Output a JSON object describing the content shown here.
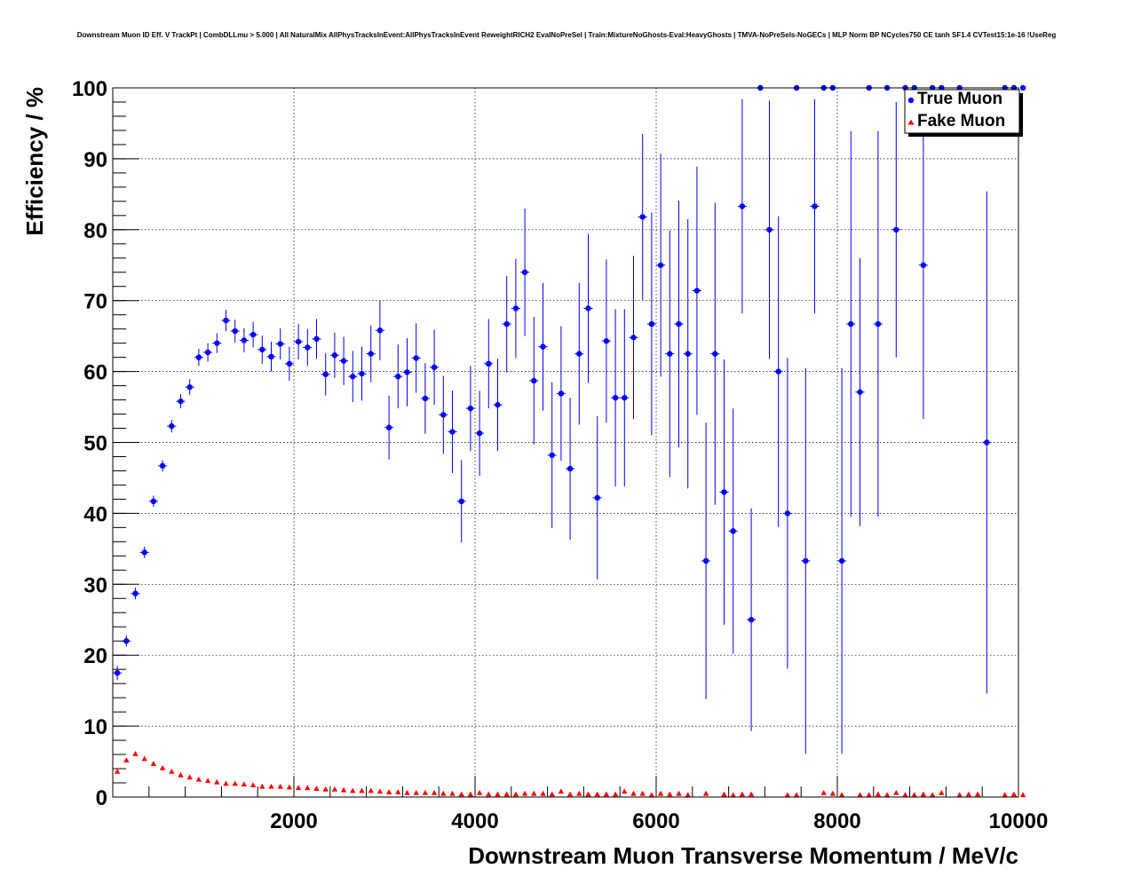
{
  "chart_data": {
    "type": "scatter",
    "title": "Downstream Muon ID Eff. V TrackPt | CombDLLmu > 5.000 | All NaturalMix AllPhysTracksInEvent:AllPhysTracksInEvent ReweightRICH2 EvalNoPreSel | Train:MixtureNoGhosts-Eval:HeavyGhosts | TMVA-NoPreSels-NoGECs | MLP Norm BP NCycles750 CE tanh SF1.4 CVTest15:1e-16 !UseReg",
    "xlabel": "Downstream Muon Transverse Momentum / MeV/c",
    "ylabel": "Efficiency / %",
    "xlim": [
      0,
      10000
    ],
    "ylim": [
      0,
      100
    ],
    "x_ticks": [
      "2000",
      "4000",
      "6000",
      "8000",
      "10000"
    ],
    "y_ticks": [
      "0",
      "10",
      "20",
      "30",
      "40",
      "50",
      "60",
      "70",
      "80",
      "90",
      "100"
    ],
    "grid": true,
    "legend_position": "top-right",
    "bin_width": 100,
    "series": [
      {
        "name": "True Muon",
        "color": "#0000ff",
        "marker": "circle",
        "x": [
          50,
          150,
          250,
          350,
          450,
          550,
          650,
          750,
          850,
          950,
          1050,
          1150,
          1250,
          1350,
          1450,
          1550,
          1650,
          1750,
          1850,
          1950,
          2050,
          2150,
          2250,
          2350,
          2450,
          2550,
          2650,
          2750,
          2850,
          2950,
          3050,
          3150,
          3250,
          3350,
          3450,
          3550,
          3650,
          3750,
          3850,
          3950,
          4050,
          4150,
          4250,
          4350,
          4450,
          4550,
          4650,
          4750,
          4850,
          4950,
          5050,
          5150,
          5250,
          5350,
          5450,
          5550,
          5650,
          5750,
          5850,
          5950,
          6050,
          6150,
          6250,
          6350,
          6450,
          6550,
          6650,
          6750,
          6850,
          6950,
          7050,
          7150,
          7250,
          7350,
          7450,
          7550,
          7650,
          7750,
          7850,
          7950,
          8050,
          8150,
          8250,
          8350,
          8450,
          8550,
          8650,
          8750,
          8850,
          8950,
          9050,
          9150,
          9350,
          9650,
          9850,
          9950,
          10050
        ],
        "y": [
          17.5,
          22,
          28.7,
          34.5,
          41.7,
          46.7,
          52.3,
          55.8,
          57.8,
          62,
          62.7,
          64,
          67.2,
          65.7,
          64.4,
          65.2,
          63.1,
          62.1,
          63.9,
          61.1,
          64.2,
          63.4,
          64.6,
          59.6,
          62.3,
          61.5,
          59.3,
          59.7,
          62.5,
          65.8,
          52.1,
          59.3,
          59.9,
          61.9,
          56.2,
          60.6,
          53.9,
          51.5,
          41.7,
          54.8,
          51.3,
          61.1,
          55.3,
          66.7,
          68.9,
          74,
          58.7,
          63.5,
          48.2,
          56.9,
          46.3,
          62.5,
          68.9,
          42.2,
          64.3,
          56.3,
          56.3,
          64.8,
          81.8,
          66.7,
          75,
          62.5,
          66.7,
          62.5,
          71.4,
          33.3,
          62.5,
          43,
          37.5,
          83.3,
          25,
          100,
          80,
          60,
          40,
          100,
          33.3,
          83.3,
          100,
          100,
          33.3,
          66.7,
          57.1,
          100,
          66.7,
          100,
          80,
          100,
          100,
          75,
          100,
          100,
          100,
          50,
          100,
          100,
          100
        ],
        "err": [
          1,
          0.8,
          0.8,
          0.8,
          0.8,
          0.8,
          0.9,
          1,
          1.1,
          1.2,
          1.3,
          1.4,
          1.5,
          1.6,
          1.7,
          1.8,
          2,
          2.1,
          2.2,
          2.4,
          2.5,
          2.6,
          2.8,
          3,
          3.2,
          3.4,
          3.6,
          3.8,
          4,
          4.2,
          4.5,
          4.5,
          4.8,
          4.9,
          5,
          5.3,
          5.5,
          5.8,
          5.8,
          6,
          6,
          6.3,
          6.5,
          6.8,
          7,
          9,
          9,
          9,
          10.3,
          9.5,
          10,
          10,
          10.5,
          11.5,
          11.5,
          12.5,
          12.5,
          11.5,
          11.7,
          15.7,
          15.7,
          17.4,
          17.4,
          19,
          17.5,
          19.5,
          21.3,
          18.7,
          17.3,
          15.1,
          15.7,
          0,
          18.2,
          21.9,
          21.9,
          0,
          27.2,
          15.1,
          0,
          0,
          27.2,
          27.2,
          18.9,
          0,
          27.2,
          0,
          18,
          0,
          0,
          21.7,
          0,
          0,
          0,
          35.4,
          0,
          0,
          0
        ]
      },
      {
        "name": "Fake Muon",
        "color": "#ff0000",
        "marker": "triangle",
        "x": [
          50,
          150,
          250,
          350,
          450,
          550,
          650,
          750,
          850,
          950,
          1050,
          1150,
          1250,
          1350,
          1450,
          1550,
          1650,
          1750,
          1850,
          1950,
          2050,
          2150,
          2250,
          2350,
          2450,
          2550,
          2650,
          2750,
          2850,
          2950,
          3050,
          3150,
          3250,
          3350,
          3450,
          3550,
          3650,
          3750,
          3850,
          3950,
          4050,
          4150,
          4250,
          4350,
          4450,
          4550,
          4650,
          4750,
          4850,
          4950,
          5050,
          5150,
          5250,
          5350,
          5450,
          5550,
          5650,
          5750,
          5850,
          5950,
          6050,
          6150,
          6250,
          6350,
          6550,
          6750,
          6850,
          6950,
          7050,
          7450,
          7550,
          7850,
          7950,
          8050,
          8250,
          8350,
          8450,
          8550,
          8650,
          8750,
          8850,
          8950,
          9050,
          9150,
          9350,
          9450,
          9550,
          9850,
          9950,
          10050
        ],
        "y": [
          3.6,
          5.2,
          6.1,
          5.4,
          4.7,
          4.1,
          3.6,
          3.1,
          2.8,
          2.5,
          2.3,
          2.1,
          1.9,
          1.9,
          1.8,
          1.7,
          1.5,
          1.5,
          1.5,
          1.4,
          1.3,
          1.3,
          1.2,
          1.1,
          1.1,
          1,
          0.9,
          0.9,
          0.9,
          0.8,
          0.7,
          0.7,
          0.6,
          0.6,
          0.6,
          0.6,
          0.5,
          0.5,
          0.4,
          0.4,
          0.6,
          0.4,
          0.4,
          0.4,
          0.4,
          0.5,
          0.5,
          0.5,
          0.4,
          0.8,
          0.4,
          0.5,
          0.4,
          0.4,
          0.4,
          0.4,
          0.8,
          0.5,
          0.5,
          0.3,
          0.5,
          0.4,
          0.5,
          0.3,
          0.5,
          0.4,
          0.3,
          0.4,
          0.4,
          0.3,
          0.3,
          0.6,
          0.5,
          0.3,
          0.3,
          0.3,
          0.4,
          0.3,
          0.6,
          0.3,
          0.3,
          0.4,
          0.3,
          0.6,
          0.3,
          0.4,
          0.4,
          0.3,
          0.4,
          0.3
        ]
      }
    ]
  }
}
